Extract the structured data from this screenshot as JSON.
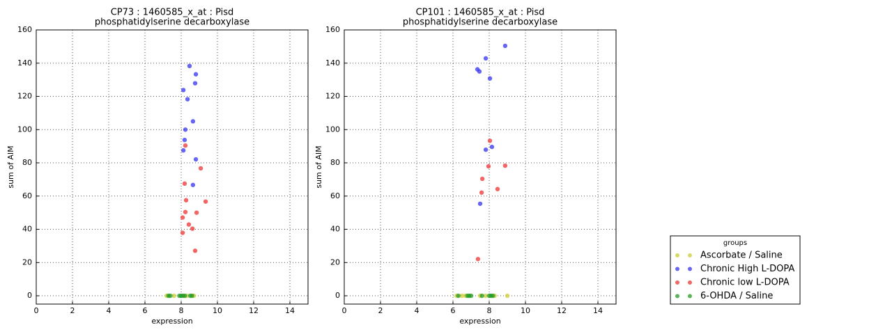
{
  "chart_data": [
    {
      "type": "scatter",
      "title": "CP73 : 1460585_x_at : Pisd",
      "subtitle": "phosphatidylserine decarboxylase",
      "x_label": "expression",
      "y_label": "sum of AIM",
      "xlim": [
        0,
        15
      ],
      "ylim": [
        -5,
        160
      ],
      "xticks": [
        0,
        2,
        4,
        6,
        8,
        10,
        12,
        14
      ],
      "yticks": [
        0,
        20,
        40,
        60,
        80,
        100,
        120,
        140,
        160
      ],
      "grid": true,
      "legend_title": "groups",
      "series": [
        {
          "name": "Ascorbate / Saline",
          "color": "#cccc33",
          "x": [
            7.2,
            7.6,
            8.3,
            8.7
          ],
          "values": [
            0,
            0,
            0,
            0
          ]
        },
        {
          "name": "Chronic High L-DOPA",
          "color": "#3333ee",
          "x": [
            8.46,
            8.81,
            8.77,
            8.12,
            8.35,
            8.65,
            8.23,
            8.19,
            8.12,
            8.81,
            8.65
          ],
          "values": [
            138.3,
            133.3,
            127.9,
            123.8,
            118.3,
            105,
            100,
            93.8,
            87.5,
            82.1,
            66.7
          ]
        },
        {
          "name": "Chronic low L-DOPA",
          "color": "#ee3333",
          "x": [
            8.23,
            9.08,
            8.19,
            8.27,
            9.35,
            8.23,
            8.85,
            8.08,
            8.42,
            8.62,
            8.08,
            8.77
          ],
          "values": [
            90.4,
            76.7,
            67.5,
            57.5,
            56.7,
            50.4,
            50,
            47.1,
            42.9,
            40.4,
            37.9,
            27.1
          ]
        },
        {
          "name": "6-OHDA / Saline",
          "color": "#229922",
          "x": [
            7.3,
            7.4,
            7.9,
            8.0,
            8.1,
            8.2,
            8.5,
            8.6
          ],
          "values": [
            0,
            0,
            0,
            0,
            0,
            0,
            0,
            0
          ]
        }
      ]
    },
    {
      "type": "scatter",
      "title": "CP101 : 1460585_x_at : Pisd",
      "subtitle": "phosphatidylserine decarboxylase",
      "x_label": "expression",
      "y_label": "sum of AIM",
      "xlim": [
        0,
        15
      ],
      "ylim": [
        -5,
        160
      ],
      "xticks": [
        0,
        2,
        4,
        6,
        8,
        10,
        12,
        14
      ],
      "yticks": [
        0,
        20,
        40,
        60,
        80,
        100,
        120,
        140,
        160
      ],
      "grid": true,
      "series": [
        {
          "name": "Ascorbate / Saline",
          "color": "#cccc33",
          "x": [
            6.2,
            6.5,
            6.7,
            7.5,
            7.8,
            8.3,
            9.0
          ],
          "values": [
            0,
            0,
            0,
            0,
            0,
            0,
            0
          ]
        },
        {
          "name": "Chronic High L-DOPA",
          "color": "#3333ee",
          "x": [
            8.88,
            7.81,
            7.35,
            7.46,
            8.04,
            7.81,
            8.15,
            7.5
          ],
          "values": [
            150.4,
            142.9,
            136.3,
            135,
            130.8,
            87.9,
            89.6,
            55.4
          ]
        },
        {
          "name": "Chronic low L-DOPA",
          "color": "#ee3333",
          "x": [
            8.04,
            7.96,
            8.88,
            7.62,
            8.46,
            7.58,
            7.38
          ],
          "values": [
            93.3,
            77.9,
            78.3,
            70.4,
            64.2,
            62.1,
            22.1
          ]
        },
        {
          "name": "6-OHDA / Saline",
          "color": "#229922",
          "x": [
            6.3,
            6.8,
            6.9,
            7.0,
            7.6,
            8.0,
            8.1,
            8.2
          ],
          "values": [
            0,
            0,
            0,
            0,
            0,
            0,
            0,
            0
          ]
        }
      ]
    }
  ]
}
